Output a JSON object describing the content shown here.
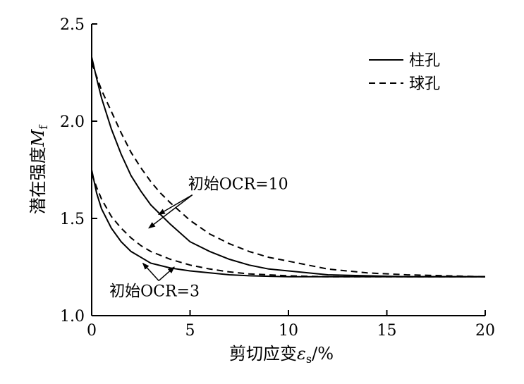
{
  "chart_data": {
    "type": "line",
    "xlabel": {
      "main": "剪切应变",
      "symbol": "ε",
      "sub": "s",
      "unit": "/%"
    },
    "ylabel": {
      "main": "潜在强度",
      "symbol": "M",
      "sub": "f"
    },
    "xlim": [
      0,
      20
    ],
    "ylim": [
      1.0,
      2.5
    ],
    "xticks": [
      0,
      5,
      10,
      15,
      20
    ],
    "yticks": [
      1.0,
      1.5,
      2.0,
      2.5
    ],
    "xtick_labels": [
      "0",
      "5",
      "10",
      "15",
      "20"
    ],
    "ytick_labels": [
      "1.0",
      "1.5",
      "2.0",
      "2.5"
    ],
    "grid": false,
    "legend": {
      "position": "top-right",
      "entries": [
        {
          "label": "柱孔",
          "style": "solid"
        },
        {
          "label": "球孔",
          "style": "dashed"
        }
      ]
    },
    "series": [
      {
        "group": "初始OCR=10",
        "style": "solid",
        "x": [
          0,
          0.25,
          0.5,
          1,
          1.5,
          2,
          2.5,
          3,
          3.5,
          4,
          5,
          6,
          7,
          8,
          9,
          10,
          12,
          14,
          16,
          18,
          20
        ],
        "y": [
          2.33,
          2.22,
          2.12,
          1.96,
          1.83,
          1.72,
          1.64,
          1.57,
          1.52,
          1.47,
          1.38,
          1.33,
          1.29,
          1.26,
          1.24,
          1.23,
          1.21,
          1.205,
          1.2,
          1.2,
          1.2
        ]
      },
      {
        "group": "初始OCR=10",
        "style": "dashed",
        "x": [
          0,
          0.25,
          0.5,
          1,
          1.5,
          2,
          2.5,
          3,
          3.5,
          4,
          5,
          6,
          7,
          8,
          9,
          10,
          12,
          14,
          16,
          18,
          20
        ],
        "y": [
          2.3,
          2.23,
          2.16,
          2.05,
          1.94,
          1.84,
          1.76,
          1.69,
          1.63,
          1.58,
          1.49,
          1.42,
          1.37,
          1.33,
          1.3,
          1.28,
          1.24,
          1.22,
          1.21,
          1.205,
          1.2
        ]
      },
      {
        "group": "初始OCR=3",
        "style": "solid",
        "x": [
          0,
          0.25,
          0.5,
          1,
          1.5,
          2,
          2.5,
          3,
          4,
          5,
          6,
          7,
          8,
          10,
          12,
          14,
          16,
          18,
          20
        ],
        "y": [
          1.75,
          1.63,
          1.55,
          1.45,
          1.38,
          1.33,
          1.3,
          1.27,
          1.245,
          1.23,
          1.22,
          1.21,
          1.205,
          1.2,
          1.2,
          1.2,
          1.2,
          1.2,
          1.2
        ]
      },
      {
        "group": "初始OCR=3",
        "style": "dashed",
        "x": [
          0,
          0.25,
          0.5,
          1,
          1.5,
          2,
          2.5,
          3,
          4,
          5,
          6,
          7,
          8,
          10,
          12,
          14,
          16,
          18,
          20
        ],
        "y": [
          1.73,
          1.66,
          1.6,
          1.51,
          1.45,
          1.4,
          1.36,
          1.33,
          1.29,
          1.26,
          1.24,
          1.225,
          1.215,
          1.205,
          1.2,
          1.2,
          1.2,
          1.2,
          1.2
        ]
      }
    ],
    "annotations": [
      {
        "text": "初始OCR=10",
        "x": 4.9,
        "y": 1.65,
        "arrows": [
          {
            "x": 2.9,
            "y": 1.45
          },
          {
            "x": 3.4,
            "y": 1.52
          }
        ]
      },
      {
        "text": "初始OCR=3",
        "x": 0.9,
        "y": 1.1,
        "arrows": [
          {
            "x": 2.6,
            "y": 1.27
          },
          {
            "x": 4.2,
            "y": 1.25
          }
        ]
      }
    ]
  }
}
